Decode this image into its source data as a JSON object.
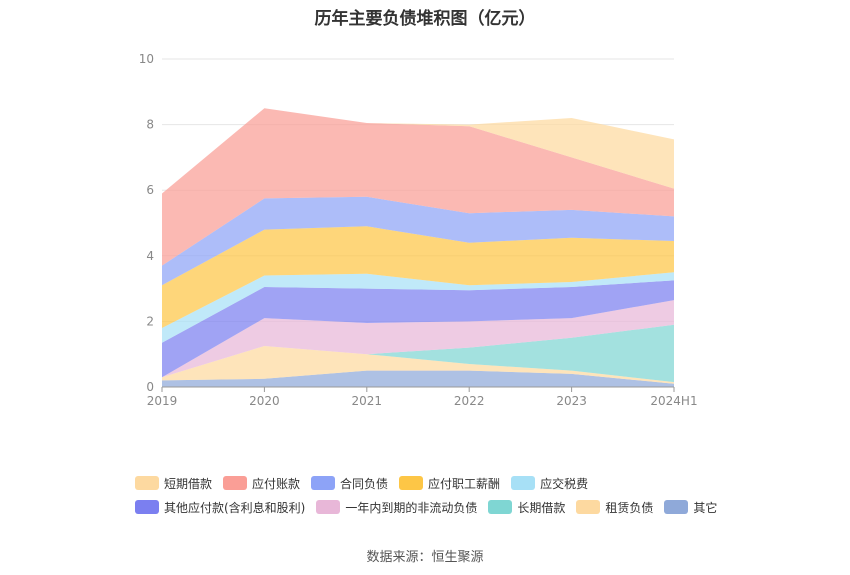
{
  "title": "历年主要负债堆积图（亿元）",
  "source": "数据来源：恒生聚源",
  "chart_data": {
    "type": "area",
    "stacked": true,
    "categories": [
      "2019",
      "2020",
      "2021",
      "2022",
      "2023",
      "2024H1"
    ],
    "ylim": [
      0,
      10
    ],
    "yticks": [
      "0",
      "2",
      "4",
      "6",
      "8",
      "10"
    ],
    "grid": true,
    "legend_position": "bottom",
    "series": [
      {
        "name": "其它",
        "color": "#8fa9d9",
        "values": [
          0.2,
          0.25,
          0.5,
          0.5,
          0.4,
          0.1
        ]
      },
      {
        "name": "租赁负债",
        "color": "#fdd9a0",
        "values": [
          0.1,
          1.0,
          0.5,
          0.2,
          0.1,
          0.05
        ]
      },
      {
        "name": "长期借款",
        "color": "#7fd6d3",
        "values": [
          0.0,
          0.0,
          0.0,
          0.5,
          1.0,
          1.75
        ]
      },
      {
        "name": "一年内到期的非流动负债",
        "color": "#e8b7d8",
        "values": [
          0.0,
          0.85,
          0.95,
          0.8,
          0.6,
          0.75
        ]
      },
      {
        "name": "其他应付款(含利息和股利)",
        "color": "#7b7ff0",
        "values": [
          1.05,
          0.95,
          1.05,
          0.95,
          0.95,
          0.6
        ]
      },
      {
        "name": "应交税费",
        "color": "#a7e0f6",
        "values": [
          0.45,
          0.35,
          0.45,
          0.15,
          0.15,
          0.25
        ]
      },
      {
        "name": "应付职工薪酬",
        "color": "#fdc646",
        "values": [
          1.3,
          1.4,
          1.45,
          1.3,
          1.35,
          0.95
        ]
      },
      {
        "name": "合同负债",
        "color": "#8da3f7",
        "values": [
          0.6,
          0.95,
          0.9,
          0.9,
          0.85,
          0.75
        ]
      },
      {
        "name": "应付账款",
        "color": "#fa9e96",
        "values": [
          2.2,
          2.75,
          2.25,
          2.65,
          1.6,
          0.85
        ]
      },
      {
        "name": "短期借款",
        "color": "#fdd9a0",
        "values": [
          0.0,
          0.0,
          0.0,
          0.05,
          1.2,
          1.5
        ]
      }
    ]
  },
  "legend_rows": [
    [
      "短期借款",
      "应付账款",
      "合同负债",
      "应付职工薪酬",
      "应交税费"
    ],
    [
      "其他应付款(含利息和股利)",
      "一年内到期的非流动负债",
      "长期借款",
      "租赁负债",
      "其它"
    ]
  ]
}
